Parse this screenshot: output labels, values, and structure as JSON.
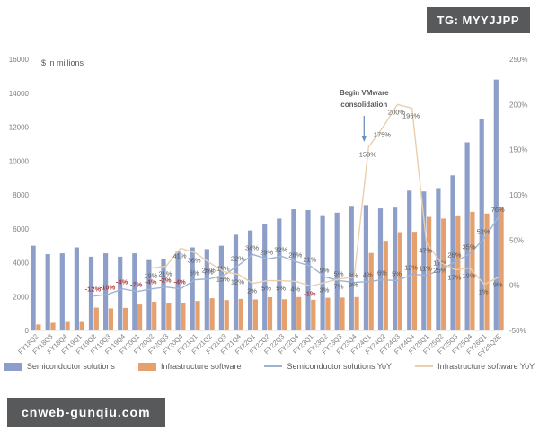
{
  "badges": {
    "top_right": "TG: MYYJJPP",
    "bottom_left": "cnweb-gunqiu.com"
  },
  "chart_data": {
    "type": "bar",
    "subtype": "combo-bar-line-dual-axis",
    "title": "",
    "unit_label": "$ in millions",
    "left_axis": {
      "min": 0,
      "max": 16000,
      "step": 2000
    },
    "right_axis": {
      "min": -50,
      "max": 250,
      "step": 50,
      "suffix": "%"
    },
    "grid": false,
    "legend_position": "bottom",
    "categories": [
      "FY18Q2",
      "FY18Q3",
      "FY18Q4",
      "FY19Q1",
      "FY19Q2",
      "FY19Q3",
      "FY19Q4",
      "FY20Q1",
      "FY20Q2",
      "FY20Q3",
      "FY20Q4",
      "FY21Q1",
      "FY21Q2",
      "FY21Q3",
      "FY21Q4",
      "FY22Q1",
      "FY22Q2",
      "FY22Q3",
      "FY22Q4",
      "FY23Q1",
      "FY23Q2",
      "FY23Q3",
      "FY23Q4",
      "FY24Q1",
      "FY24Q2",
      "FY24Q3",
      "FY24Q4",
      "FY25Q1",
      "FY25Q2",
      "FY25Q3",
      "FY25Q4",
      "FY26Q1",
      "FY26Q2E"
    ],
    "series": [
      {
        "name": "Semiconductor solutions",
        "kind": "bar",
        "axis": "left",
        "color": "#8d9fc9",
        "values": [
          5000,
          4500,
          4550,
          4900,
          4350,
          4550,
          4350,
          4550,
          4150,
          4200,
          4650,
          4900,
          4800,
          5000,
          5650,
          5900,
          6250,
          6600,
          7150,
          7100,
          6800,
          6950,
          7350,
          7400,
          7200,
          7250,
          8250,
          8200,
          8400,
          9150,
          11100,
          12500,
          14800
        ]
      },
      {
        "name": "Infrastructure software",
        "kind": "bar",
        "axis": "left",
        "color": "#e5a06d",
        "values": [
          350,
          450,
          500,
          500,
          1350,
          1300,
          1330,
          1530,
          1700,
          1600,
          1640,
          1740,
          1900,
          1790,
          1860,
          1830,
          1960,
          1840,
          1970,
          1810,
          1930,
          1940,
          1970,
          4570,
          5290,
          5800,
          5820,
          6700,
          6600,
          6790,
          7000,
          6900,
          7300
        ]
      },
      {
        "name": "Semiconductor solutions YoY",
        "kind": "line",
        "axis": "right",
        "color": "#9fb4d1",
        "label_side": "above",
        "values": [
          null,
          null,
          null,
          null,
          -12,
          -10,
          -4,
          -7,
          -4,
          -2,
          -4,
          6,
          7,
          11,
          22,
          34,
          29,
          32,
          26,
          21,
          9,
          5,
          3,
          4,
          6,
          5,
          12,
          11,
          17,
          26,
          35,
          52,
          76
        ]
      },
      {
        "name": "Infrastructure software YoY",
        "kind": "line",
        "axis": "right",
        "color": "#e9cfae",
        "label_side": "below",
        "values": [
          null,
          null,
          null,
          null,
          null,
          null,
          null,
          null,
          19,
          21,
          41,
          36,
          25,
          15,
          12,
          2,
          5,
          5,
          4,
          -1,
          3,
          7,
          9,
          153,
          175,
          200,
          196,
          47,
          25,
          17,
          19,
          1,
          9
        ]
      }
    ],
    "label_suffix": "%",
    "label_color": "#595959",
    "negative_label_color": "#b03a3a",
    "annotation": {
      "line1": "Begin VMware",
      "line2": "consolidation",
      "target_category": "FY24Q1",
      "arrow_color": "#6b93c0"
    }
  },
  "legend": {
    "items": [
      {
        "label": "Semiconductor solutions",
        "swatch": "bar",
        "color": "#8d9fc9"
      },
      {
        "label": "Infrastructure software",
        "swatch": "bar",
        "color": "#e5a06d"
      },
      {
        "label": "Semiconductor solutions YoY",
        "swatch": "line",
        "color": "#9fb4d1"
      },
      {
        "label": "Infrastructure software YoY",
        "swatch": "line",
        "color": "#e9cfae"
      }
    ]
  }
}
